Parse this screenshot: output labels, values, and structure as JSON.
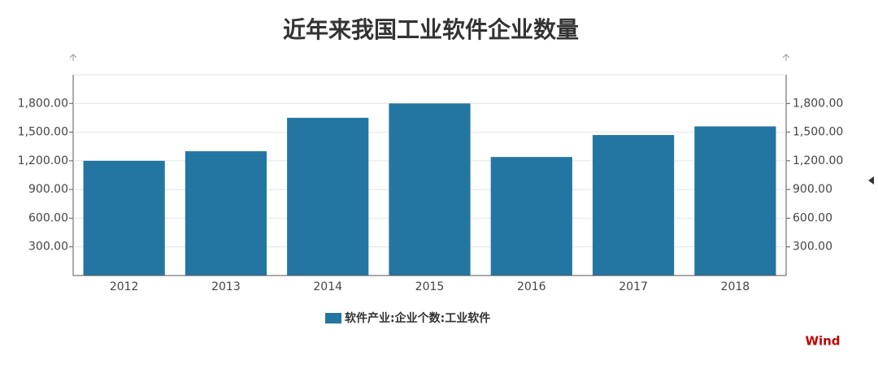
{
  "chart_data": {
    "type": "bar",
    "title": "近年来我国工业软件企业数量",
    "categories": [
      "2012",
      "2013",
      "2014",
      "2015",
      "2016",
      "2017",
      "2018"
    ],
    "series": [
      {
        "name": "软件产业:企业个数:工业软件",
        "color": "#2476a2",
        "values": [
          1200,
          1300,
          1650,
          1800,
          1240,
          1470,
          1560
        ]
      }
    ],
    "ylim": [
      0,
      2100
    ],
    "yticks": [
      {
        "value": 300,
        "label": "300.00"
      },
      {
        "value": 600,
        "label": "600.00"
      },
      {
        "value": 900,
        "label": "900.00"
      },
      {
        "value": 1200,
        "label": "1,200.00"
      },
      {
        "value": 1500,
        "label": "1,500.00"
      },
      {
        "value": 1800,
        "label": "1,800.00"
      }
    ],
    "y2lim": [
      0,
      2100
    ],
    "y2ticks": [
      {
        "value": 300,
        "label": "300.00"
      },
      {
        "value": 600,
        "label": "600.00"
      },
      {
        "value": 900,
        "label": "900.00"
      },
      {
        "value": 1200,
        "label": "1,200.00"
      },
      {
        "value": 1500,
        "label": "1,500.00"
      },
      {
        "value": 1800,
        "label": "1,800.00"
      }
    ],
    "grid": true,
    "legend": "bottom",
    "watermark": "Wind"
  }
}
